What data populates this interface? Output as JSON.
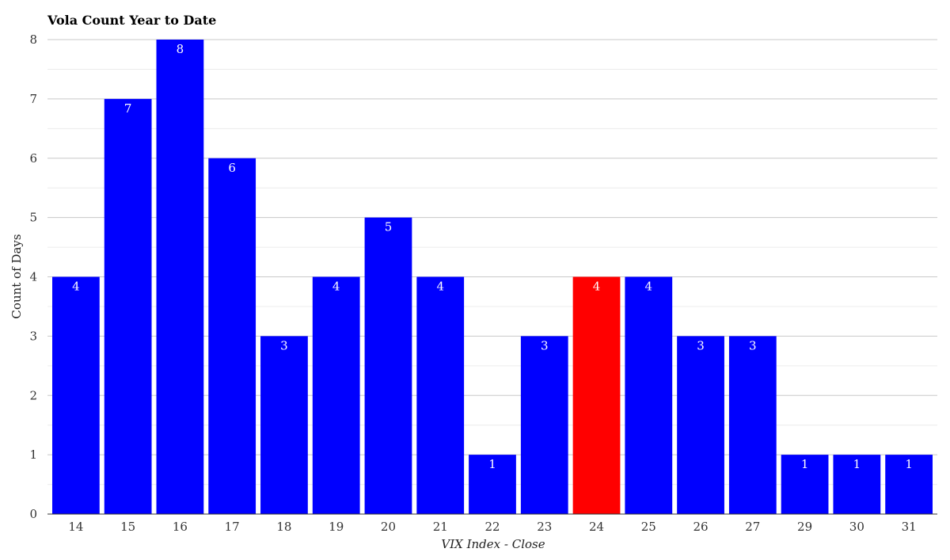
{
  "chart_data": {
    "type": "bar",
    "title": "Vola Count Year to Date",
    "xlabel": "VIX Index - Close",
    "ylabel": "Count of Days",
    "categories": [
      "14",
      "15",
      "16",
      "17",
      "18",
      "19",
      "20",
      "21",
      "22",
      "23",
      "24",
      "25",
      "26",
      "27",
      "29",
      "30",
      "31"
    ],
    "values": [
      4,
      7,
      8,
      6,
      3,
      4,
      5,
      4,
      1,
      3,
      4,
      4,
      3,
      3,
      1,
      1,
      1
    ],
    "highlight_category": "24",
    "ylim": [
      0,
      8
    ],
    "yticks": [
      0,
      1,
      2,
      3,
      4,
      5,
      6,
      7,
      8
    ],
    "grid": true,
    "legend": "none",
    "colors": {
      "bar": "#0000ff",
      "highlight": "#ff0000",
      "data_label": "#ffffff"
    }
  }
}
